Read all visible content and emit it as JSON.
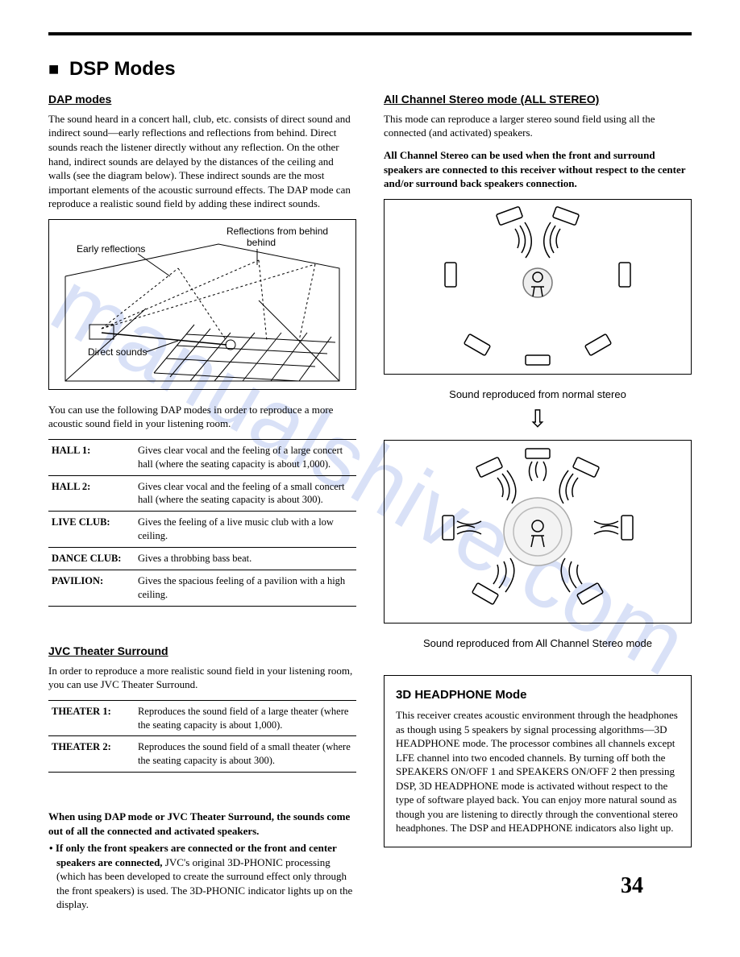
{
  "page_number": "34",
  "watermark_text": "manualshive.com",
  "main_heading": "DSP Modes",
  "left": {
    "dap_heading": "DAP modes",
    "dap_para": "The sound heard in a concert hall, club, etc. consists of direct sound and indirect sound—early reflections and reflections from behind. Direct sounds reach the listener directly without any reflection. On the other hand, indirect sounds are delayed by the distances of the ceiling and walls (see the diagram below). These indirect sounds are the most important elements of the acoustic surround effects. The DAP mode can reproduce a realistic sound field by adding these indirect sounds.",
    "diagram_labels": {
      "early": "Early reflections",
      "behind": "Reflections from behind",
      "direct": "Direct sounds"
    },
    "dap_para2": "You can use the following DAP modes in order to reproduce a more acoustic sound field in your listening room.",
    "dap_table": [
      {
        "label": "HALL 1:",
        "desc": "Gives clear vocal and the feeling of a large concert hall (where the seating capacity is about 1,000)."
      },
      {
        "label": "HALL 2:",
        "desc": "Gives clear vocal and the feeling of a small concert hall (where the seating capacity is about 300)."
      },
      {
        "label": "LIVE CLUB:",
        "desc": "Gives the feeling of a live music club with a low ceiling."
      },
      {
        "label": "DANCE CLUB:",
        "desc": "Gives a throbbing bass beat."
      },
      {
        "label": "PAVILION:",
        "desc": "Gives the spacious feeling of a pavilion with a high ceiling."
      }
    ],
    "jvc_heading": "JVC Theater Surround",
    "jvc_para": "In order to reproduce a more realistic sound field in your listening room, you can use JVC Theater Surround.",
    "jvc_table": [
      {
        "label": "THEATER 1:",
        "desc": "Reproduces the sound field of a large theater (where the seating capacity is about 1,000)."
      },
      {
        "label": "THEATER 2:",
        "desc": "Reproduces the sound field of a small theater (where the seating capacity is about 300)."
      }
    ],
    "usage_note_bold": "When using DAP mode or JVC Theater Surround, the sounds come out of all the connected and activated speakers.",
    "usage_bullet_bold": "If only the front speakers are connected or the front and center speakers are connected, ",
    "usage_bullet_rest": "JVC's original 3D-PHONIC processing (which has been developed to create the surround effect only through the front speakers) is used. The 3D-PHONIC indicator lights up on the display."
  },
  "right": {
    "all_heading": "All Channel Stereo mode (ALL STEREO)",
    "all_para": "This mode can reproduce a larger stereo sound field using all the connected (and activated) speakers.",
    "all_bold": "All Channel Stereo can be used when the front and surround speakers are connected to this receiver without respect to the center and/or surround back speakers connection.",
    "caption1": "Sound reproduced from normal stereo",
    "caption2": "Sound reproduced from All Channel Stereo mode",
    "box3d_title": "3D HEADPHONE Mode",
    "box3d_para": "This receiver creates acoustic environment through the headphones as though using 5 speakers by signal processing algorithms—3D HEADPHONE mode. The processor combines all channels except LFE channel into two encoded channels. By turning off both the SPEAKERS ON/OFF 1 and SPEAKERS ON/OFF 2 then pressing DSP, 3D HEADPHONE mode is activated without respect to the type of software played back. You can enjoy more natural sound as though you are listening to directly through the conventional stereo headphones. The DSP and HEADPHONE indicators also light up."
  },
  "colors": {
    "text": "#000000",
    "bg": "#ffffff",
    "watermark": "rgba(80,120,220,0.22)"
  }
}
